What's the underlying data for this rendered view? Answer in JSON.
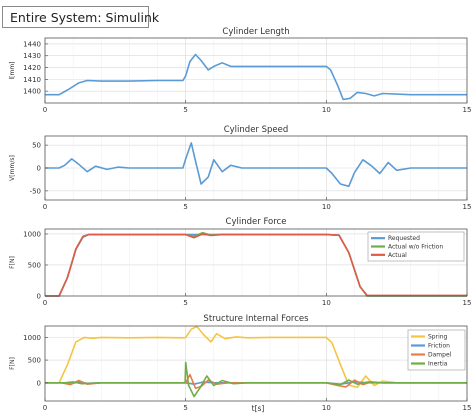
{
  "header": {
    "title": "Entire System: Simulink"
  },
  "chart_data": [
    {
      "type": "line",
      "title": "Cylinder Length",
      "ylabel": "l[mm]",
      "xlim": [
        0,
        15
      ],
      "ylim": [
        1390,
        1445
      ],
      "yticks": [
        1400,
        1410,
        1420,
        1430,
        1440
      ],
      "xticks": [
        0,
        5,
        10,
        15
      ],
      "grid": true,
      "series": [
        {
          "color": "#5b9bd5",
          "x": [
            0,
            0.5,
            0.8,
            1.2,
            1.5,
            2,
            3,
            4,
            4.9,
            5.0,
            5.15,
            5.35,
            5.55,
            5.8,
            6.0,
            6.3,
            6.6,
            7,
            8,
            9,
            10,
            10.15,
            10.4,
            10.6,
            10.85,
            11.1,
            11.4,
            11.7,
            12,
            13,
            14,
            15
          ],
          "y": [
            1397,
            1397,
            1401,
            1407,
            1409,
            1408.5,
            1408.5,
            1409,
            1409,
            1413,
            1425,
            1431,
            1426,
            1418,
            1421,
            1424,
            1421,
            1421,
            1421,
            1421,
            1421,
            1418,
            1405,
            1393,
            1394,
            1399,
            1398,
            1396,
            1398,
            1397,
            1397,
            1397
          ]
        }
      ]
    },
    {
      "type": "line",
      "title": "Cylinder Speed",
      "ylabel": "V[mm/s]",
      "xlim": [
        0,
        15
      ],
      "ylim": [
        -70,
        70
      ],
      "yticks": [
        -50,
        0,
        50
      ],
      "xticks": [
        0,
        5,
        10,
        15
      ],
      "grid": true,
      "series": [
        {
          "color": "#5b9bd5",
          "x": [
            0,
            0.5,
            0.7,
            0.95,
            1.2,
            1.5,
            1.8,
            2.2,
            2.6,
            3,
            4,
            4.9,
            5.0,
            5.2,
            5.35,
            5.55,
            5.8,
            6.0,
            6.3,
            6.6,
            7,
            8,
            9,
            10,
            10.2,
            10.5,
            10.8,
            11,
            11.3,
            11.6,
            11.9,
            12.2,
            12.5,
            13,
            14,
            15
          ],
          "y": [
            0,
            0,
            6,
            20,
            8,
            -8,
            4,
            -3,
            2,
            0,
            0,
            0,
            20,
            55,
            15,
            -35,
            -20,
            18,
            -8,
            6,
            0,
            0,
            0,
            0,
            -12,
            -35,
            -40,
            -10,
            18,
            5,
            -12,
            12,
            -5,
            0,
            0,
            0
          ]
        }
      ]
    },
    {
      "type": "line",
      "title": "Cylinder Force",
      "ylabel": "F[N]",
      "xlim": [
        0,
        15
      ],
      "ylim": [
        0,
        1080
      ],
      "yticks": [
        0,
        500,
        1000
      ],
      "xticks": [
        0,
        5,
        10,
        15
      ],
      "grid": true,
      "legend": "top-right",
      "series": [
        {
          "name": "Requested",
          "color": "#5b9bd5",
          "x": [
            0,
            0.5,
            0.8,
            1.1,
            1.35,
            1.55,
            5,
            10,
            10.45,
            10.8,
            11.2,
            11.45,
            15
          ],
          "y": [
            0,
            0,
            300,
            750,
            950,
            990,
            990,
            990,
            980,
            700,
            150,
            0,
            0
          ]
        },
        {
          "name": "Actual w/o Friction",
          "color": "#70ad47",
          "x": [
            0,
            0.5,
            0.8,
            1.1,
            1.35,
            1.55,
            5,
            5.3,
            5.6,
            5.9,
            6.3,
            10,
            10.45,
            10.8,
            11.2,
            11.45,
            15
          ],
          "y": [
            0,
            0,
            300,
            760,
            960,
            990,
            990,
            960,
            1020,
            980,
            995,
            990,
            980,
            700,
            150,
            0,
            0
          ]
        },
        {
          "name": "Actual",
          "color": "#e05a4a",
          "x": [
            0,
            0.5,
            0.8,
            1.1,
            1.35,
            1.55,
            5,
            5.3,
            5.6,
            5.9,
            6.3,
            10,
            10.45,
            10.8,
            11.2,
            11.45,
            15
          ],
          "y": [
            0,
            0,
            300,
            760,
            960,
            990,
            990,
            940,
            1000,
            975,
            990,
            990,
            980,
            700,
            150,
            10,
            10
          ]
        }
      ]
    },
    {
      "type": "line",
      "title": "Structure Internal Forces",
      "ylabel": "F[N]",
      "xlabel": "t[s]",
      "xlim": [
        0,
        15
      ],
      "ylim": [
        -400,
        1250
      ],
      "yticks": [
        0,
        500,
        1000
      ],
      "xticks": [
        0,
        5,
        10,
        15
      ],
      "grid": true,
      "legend": "top-right",
      "series": [
        {
          "name": "Spring",
          "color": "#f4c542",
          "x": [
            0,
            0.5,
            0.8,
            1.1,
            1.4,
            1.7,
            2,
            3,
            4,
            4.9,
            5.0,
            5.2,
            5.4,
            5.65,
            5.9,
            6.1,
            6.4,
            6.8,
            7.2,
            8,
            9,
            10,
            10.2,
            10.5,
            10.8,
            11.1,
            11.4,
            11.7,
            12,
            12.5,
            13,
            14,
            15
          ],
          "y": [
            0,
            0,
            400,
            900,
            1000,
            980,
            1000,
            990,
            1000,
            990,
            1000,
            1180,
            1240,
            1050,
            900,
            1080,
            970,
            1010,
            990,
            1000,
            1000,
            1000,
            880,
            400,
            -50,
            -100,
            150,
            -60,
            40,
            0,
            0,
            0,
            0
          ]
        },
        {
          "name": "Friction",
          "color": "#5b9bd5",
          "x": [
            0,
            0.6,
            0.9,
            1.2,
            1.5,
            2,
            5,
            5.3,
            5.6,
            6,
            10,
            10.5,
            11,
            11.5,
            15
          ],
          "y": [
            0,
            0,
            -25,
            20,
            -10,
            0,
            0,
            -30,
            15,
            0,
            0,
            -30,
            20,
            0,
            0
          ]
        },
        {
          "name": "Dampel",
          "color": "#e87d4a",
          "x": [
            0,
            0.6,
            0.9,
            1.2,
            1.5,
            2,
            5,
            5.15,
            5.35,
            5.55,
            5.8,
            6.1,
            6.5,
            10,
            10.4,
            10.7,
            11,
            11.3,
            11.6,
            12,
            15
          ],
          "y": [
            0,
            0,
            -40,
            50,
            -30,
            0,
            0,
            180,
            -120,
            -80,
            60,
            -30,
            0,
            0,
            -60,
            -90,
            60,
            -40,
            20,
            0,
            0
          ]
        },
        {
          "name": "Inertia",
          "color": "#70ad47",
          "x": [
            0,
            0.7,
            1.0,
            1.3,
            2,
            4.98,
            5.0,
            5.1,
            5.3,
            5.5,
            5.75,
            6.0,
            6.3,
            6.7,
            7.2,
            10,
            10.5,
            10.8,
            11.1,
            11.5,
            12,
            15
          ],
          "y": [
            0,
            0,
            20,
            -20,
            0,
            0,
            450,
            -50,
            -300,
            -120,
            150,
            -60,
            50,
            -20,
            0,
            0,
            -40,
            60,
            -30,
            20,
            0,
            0
          ]
        }
      ]
    }
  ]
}
